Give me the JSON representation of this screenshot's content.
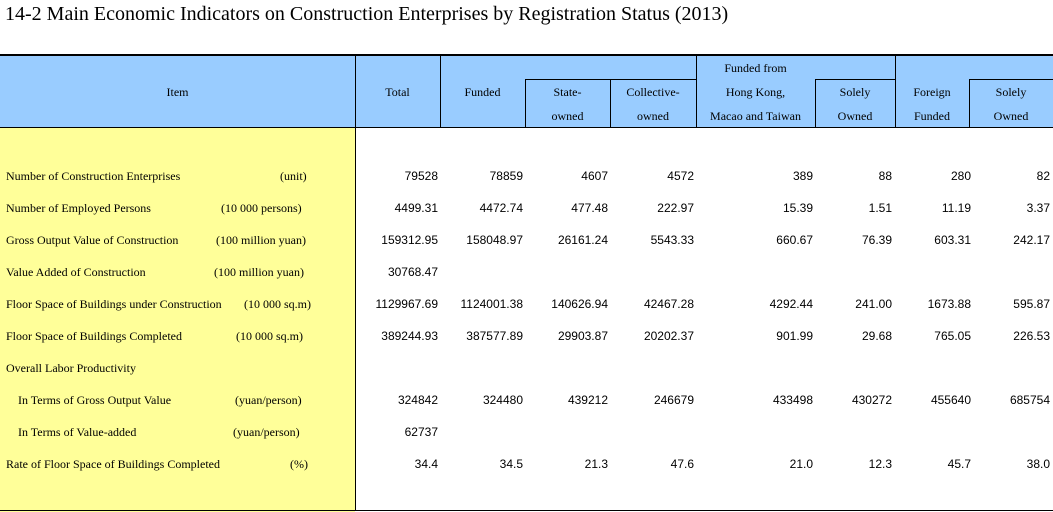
{
  "title": "14-2  Main Economic Indicators on Construction Enterprises by Registration Status (2013)",
  "headers": {
    "item": "Item",
    "total": "Total",
    "funded": "Funded",
    "state_1": "State-",
    "state_2": "owned",
    "collective_1": "Collective-",
    "collective_2": "owned",
    "hk_1": "Funded from",
    "hk_2": "Hong Kong,",
    "hk_3": "Macao and Taiwan",
    "solely1_1": "Solely",
    "solely1_2": "Owned",
    "foreign_1": "Foreign",
    "foreign_2": "Funded",
    "solely2_1": "Solely",
    "solely2_2": "Owned"
  },
  "rows": [
    {
      "label": "Number of Construction Enterprises",
      "unit": "(unit)",
      "values": [
        "79528",
        "78859",
        "4607",
        "4572",
        "389",
        "88",
        "280",
        "82"
      ]
    },
    {
      "label": "Number of Employed Persons",
      "unit": "(10 000 persons)",
      "values": [
        "4499.31",
        "4472.74",
        "477.48",
        "222.97",
        "15.39",
        "1.51",
        "11.19",
        "3.37"
      ]
    },
    {
      "label": "Gross Output Value of Construction",
      "unit": "(100 million yuan)",
      "values": [
        "159312.95",
        "158048.97",
        "26161.24",
        "5543.33",
        "660.67",
        "76.39",
        "603.31",
        "242.17"
      ]
    },
    {
      "label": "Value Added of Construction",
      "unit": "(100 million yuan)",
      "values": [
        "30768.47",
        "",
        "",
        "",
        "",
        "",
        "",
        ""
      ]
    },
    {
      "label": "Floor Space of Buildings under Construction",
      "unit": "(10 000 sq.m)",
      "values": [
        "1129967.69",
        "1124001.38",
        "140626.94",
        "42467.28",
        "4292.44",
        "241.00",
        "1673.88",
        "595.87"
      ]
    },
    {
      "label": "Floor Space of Buildings Completed",
      "unit": "(10 000 sq.m)",
      "values": [
        "389244.93",
        "387577.89",
        "29903.87",
        "20202.37",
        "901.99",
        "29.68",
        "765.05",
        "226.53"
      ]
    },
    {
      "label": "Overall Labor Productivity",
      "unit": "",
      "values": [
        "",
        "",
        "",
        "",
        "",
        "",
        "",
        ""
      ]
    },
    {
      "label": "In Terms of Gross Output Value",
      "unit": "(yuan/person)",
      "values": [
        "324842",
        "324480",
        "439212",
        "246679",
        "433498",
        "430272",
        "455640",
        "685754"
      ]
    },
    {
      "label": "In Terms of Value-added",
      "unit": "(yuan/person)",
      "values": [
        "62737",
        "",
        "",
        "",
        "",
        "",
        "",
        ""
      ]
    },
    {
      "label": "Rate of Floor Space of Buildings Completed",
      "unit": "(%)",
      "values": [
        "34.4",
        "34.5",
        "21.3",
        "47.6",
        "21.0",
        "12.3",
        "45.7",
        "38.0"
      ]
    }
  ]
}
